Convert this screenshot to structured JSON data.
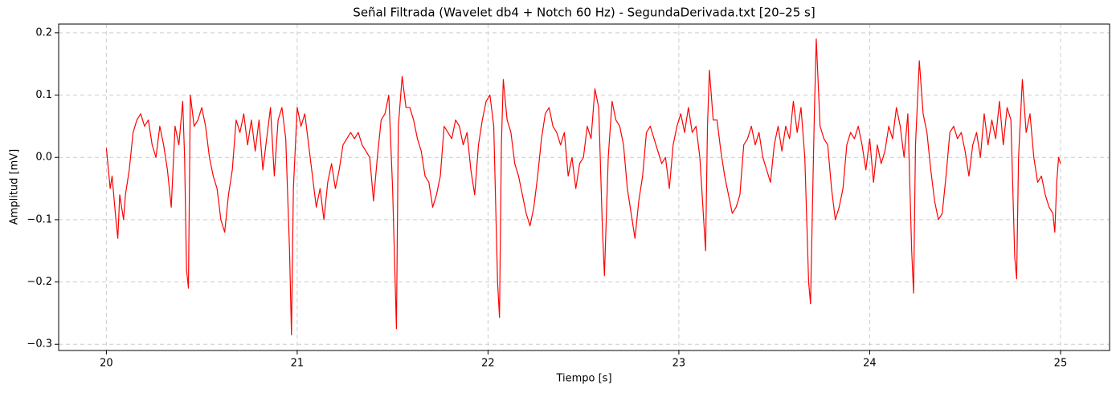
{
  "chart_data": {
    "type": "line",
    "title": "Señal Filtrada (Wavelet db4 + Notch 60 Hz) - SegundaDerivada.txt [20–25 s]",
    "xlabel": "Tiempo [s]",
    "ylabel": "Amplitud [mV]",
    "color": "#ff0000",
    "grid": true,
    "xlim": [
      19.75,
      25.257
    ],
    "ylim": [
      -0.31,
      0.214
    ],
    "xticks": [
      20,
      21,
      22,
      23,
      24,
      25
    ],
    "yticks": [
      {
        "value": -0.3,
        "label": "−0.3"
      },
      {
        "value": -0.2,
        "label": "−0.2"
      },
      {
        "value": -0.1,
        "label": "−0.1"
      },
      {
        "value": 0,
        "label": "0.0"
      },
      0.1,
      0.2
    ],
    "x": [
      20.0,
      20.02,
      20.03,
      20.05,
      20.06,
      20.07,
      20.09,
      20.1,
      20.12,
      20.14,
      20.16,
      20.18,
      20.2,
      20.22,
      20.24,
      20.26,
      20.28,
      20.3,
      20.32,
      20.34,
      20.36,
      20.38,
      20.4,
      20.41,
      20.42,
      20.43,
      20.44,
      20.46,
      20.48,
      20.5,
      20.52,
      20.54,
      20.56,
      20.58,
      20.6,
      20.62,
      20.64,
      20.66,
      20.68,
      20.7,
      20.72,
      20.74,
      20.76,
      20.78,
      20.8,
      20.82,
      20.84,
      20.86,
      20.88,
      20.9,
      20.92,
      20.94,
      20.96,
      20.97,
      20.98,
      21.0,
      21.02,
      21.04,
      21.06,
      21.08,
      21.1,
      21.12,
      21.14,
      21.16,
      21.18,
      21.2,
      21.22,
      21.24,
      21.26,
      21.28,
      21.3,
      21.32,
      21.34,
      21.36,
      21.38,
      21.4,
      21.42,
      21.44,
      21.46,
      21.48,
      21.5,
      21.52,
      21.53,
      21.55,
      21.57,
      21.59,
      21.61,
      21.63,
      21.65,
      21.67,
      21.69,
      21.71,
      21.73,
      21.75,
      21.77,
      21.79,
      21.81,
      21.83,
      21.85,
      21.87,
      21.89,
      21.91,
      21.93,
      21.95,
      21.97,
      21.99,
      22.01,
      22.03,
      22.05,
      22.06,
      22.07,
      22.08,
      22.1,
      22.12,
      22.14,
      22.16,
      22.18,
      22.2,
      22.22,
      22.24,
      22.26,
      22.28,
      22.3,
      22.32,
      22.34,
      22.36,
      22.38,
      22.4,
      22.42,
      22.44,
      22.46,
      22.48,
      22.5,
      22.52,
      22.54,
      22.56,
      22.58,
      22.6,
      22.61,
      22.63,
      22.65,
      22.67,
      22.69,
      22.71,
      22.73,
      22.75,
      22.77,
      22.79,
      22.81,
      22.83,
      22.85,
      22.87,
      22.89,
      22.91,
      22.93,
      22.95,
      22.97,
      22.99,
      23.01,
      23.03,
      23.05,
      23.07,
      23.09,
      23.11,
      23.13,
      23.14,
      23.15,
      23.16,
      23.18,
      23.2,
      23.22,
      23.24,
      23.26,
      23.28,
      23.3,
      23.32,
      23.34,
      23.36,
      23.38,
      23.4,
      23.42,
      23.44,
      23.46,
      23.48,
      23.5,
      23.52,
      23.54,
      23.56,
      23.58,
      23.6,
      23.62,
      23.64,
      23.66,
      23.68,
      23.69,
      23.7,
      23.71,
      23.72,
      23.74,
      23.76,
      23.78,
      23.8,
      23.82,
      23.84,
      23.86,
      23.88,
      23.9,
      23.92,
      23.94,
      23.96,
      23.98,
      24.0,
      24.02,
      24.04,
      24.06,
      24.08,
      24.1,
      24.12,
      24.14,
      24.16,
      24.18,
      24.2,
      24.22,
      24.23,
      24.24,
      24.26,
      24.28,
      24.3,
      24.32,
      24.34,
      24.36,
      24.38,
      24.4,
      24.42,
      24.44,
      24.46,
      24.48,
      24.5,
      24.52,
      24.54,
      24.56,
      24.58,
      24.6,
      24.62,
      24.64,
      24.66,
      24.68,
      24.7,
      24.72,
      24.74,
      24.76,
      24.77,
      24.78,
      24.8,
      24.82,
      24.84,
      24.86,
      24.88,
      24.9,
      24.92,
      24.94,
      24.96,
      24.97,
      24.98,
      24.99,
      25.0
    ],
    "values": [
      0.015,
      -0.05,
      -0.03,
      -0.1,
      -0.13,
      -0.06,
      -0.1,
      -0.06,
      -0.02,
      0.04,
      0.06,
      0.07,
      0.05,
      0.06,
      0.02,
      0.0,
      0.05,
      0.02,
      -0.02,
      -0.08,
      0.05,
      0.02,
      0.09,
      0.0,
      -0.18,
      -0.21,
      0.1,
      0.05,
      0.06,
      0.08,
      0.05,
      0.0,
      -0.03,
      -0.05,
      -0.1,
      -0.12,
      -0.06,
      -0.02,
      0.06,
      0.04,
      0.07,
      0.02,
      0.06,
      0.01,
      0.06,
      -0.02,
      0.03,
      0.08,
      -0.03,
      0.06,
      0.08,
      0.03,
      -0.15,
      -0.285,
      -0.05,
      0.08,
      0.05,
      0.07,
      0.02,
      -0.03,
      -0.08,
      -0.05,
      -0.1,
      -0.04,
      -0.01,
      -0.05,
      -0.02,
      0.02,
      0.03,
      0.04,
      0.03,
      0.04,
      0.02,
      0.01,
      0.0,
      -0.07,
      0.0,
      0.06,
      0.07,
      0.1,
      -0.05,
      -0.275,
      0.05,
      0.13,
      0.08,
      0.08,
      0.06,
      0.03,
      0.01,
      -0.03,
      -0.04,
      -0.08,
      -0.06,
      -0.03,
      0.05,
      0.04,
      0.03,
      0.06,
      0.05,
      0.02,
      0.04,
      -0.02,
      -0.06,
      0.02,
      0.06,
      0.09,
      0.1,
      0.05,
      -0.2,
      -0.257,
      0.02,
      0.125,
      0.06,
      0.04,
      -0.01,
      -0.03,
      -0.06,
      -0.09,
      -0.11,
      -0.08,
      -0.03,
      0.03,
      0.07,
      0.08,
      0.05,
      0.04,
      0.02,
      0.04,
      -0.03,
      0.0,
      -0.05,
      -0.01,
      0.0,
      0.05,
      0.03,
      0.11,
      0.08,
      -0.12,
      -0.19,
      0.0,
      0.09,
      0.06,
      0.05,
      0.02,
      -0.05,
      -0.09,
      -0.13,
      -0.07,
      -0.03,
      0.04,
      0.05,
      0.03,
      0.01,
      -0.01,
      0.0,
      -0.05,
      0.02,
      0.05,
      0.07,
      0.04,
      0.08,
      0.04,
      0.05,
      0.0,
      -0.1,
      -0.15,
      0.05,
      0.14,
      0.06,
      0.06,
      0.01,
      -0.03,
      -0.06,
      -0.09,
      -0.08,
      -0.06,
      0.02,
      0.03,
      0.05,
      0.02,
      0.04,
      0.0,
      -0.02,
      -0.04,
      0.02,
      0.05,
      0.01,
      0.05,
      0.03,
      0.09,
      0.04,
      0.08,
      0.0,
      -0.2,
      -0.235,
      -0.08,
      0.07,
      0.19,
      0.05,
      0.03,
      0.02,
      -0.05,
      -0.1,
      -0.08,
      -0.05,
      0.02,
      0.04,
      0.03,
      0.05,
      0.02,
      -0.02,
      0.03,
      -0.04,
      0.02,
      -0.01,
      0.01,
      0.05,
      0.03,
      0.08,
      0.05,
      0.0,
      0.07,
      -0.15,
      -0.218,
      0.02,
      0.155,
      0.07,
      0.04,
      -0.02,
      -0.07,
      -0.1,
      -0.09,
      -0.03,
      0.04,
      0.05,
      0.03,
      0.04,
      0.01,
      -0.03,
      0.02,
      0.04,
      0.0,
      0.07,
      0.02,
      0.06,
      0.03,
      0.09,
      0.02,
      0.08,
      0.06,
      -0.16,
      -0.195,
      0.0,
      0.125,
      0.04,
      0.07,
      0.0,
      -0.04,
      -0.03,
      -0.06,
      -0.08,
      -0.09,
      -0.12,
      -0.04,
      0.0,
      -0.01
    ]
  }
}
